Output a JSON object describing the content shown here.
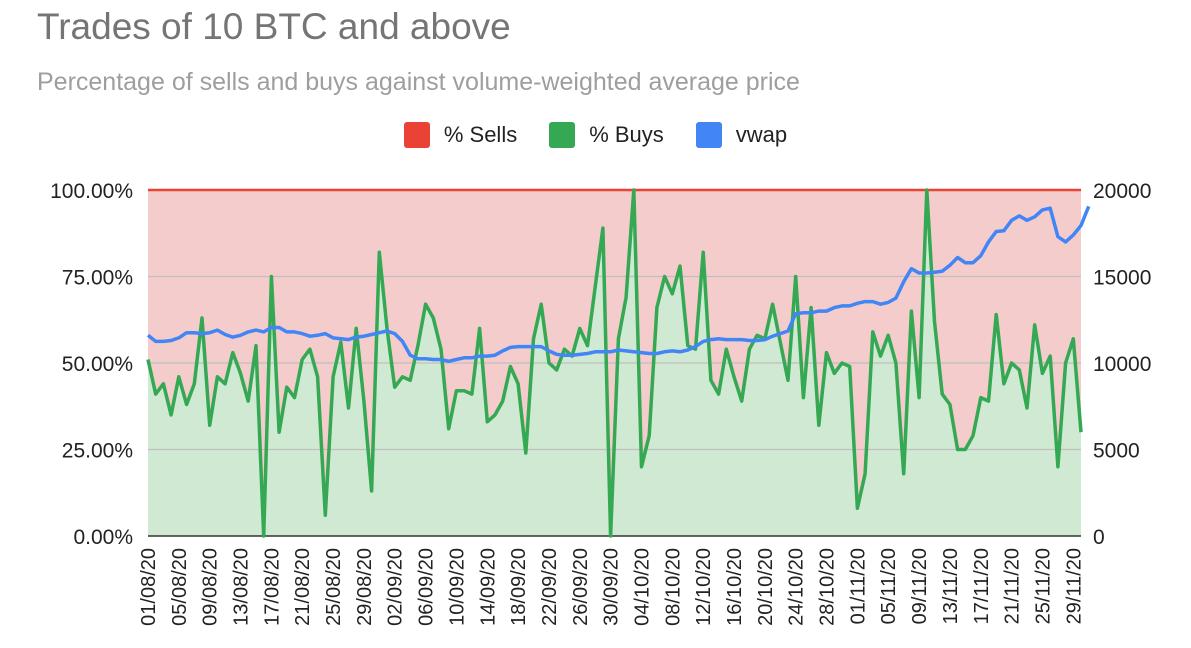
{
  "chart_data": {
    "type": "area",
    "title": "Trades of 10 BTC and above",
    "subtitle": "Percentage of sells and buys against volume-weighted average price",
    "legend": [
      {
        "name": "% Sells",
        "color": "#ea4335"
      },
      {
        "name": "% Buys",
        "color": "#34a853"
      },
      {
        "name": "vwap",
        "color": "#4285f4"
      }
    ],
    "legend_position": "top",
    "y_left": {
      "min": 0,
      "max": 1,
      "ticks": [
        "0.00%",
        "25.00%",
        "50.00%",
        "75.00%",
        "100.00%"
      ]
    },
    "y_right": {
      "min": 0,
      "max": 20000,
      "ticks": [
        "0",
        "5000",
        "10000",
        "15000",
        "20000"
      ]
    },
    "grid": true,
    "x_ticks": [
      "01/08/20",
      "05/08/20",
      "09/08/20",
      "13/08/20",
      "17/08/20",
      "21/08/20",
      "25/08/20",
      "29/08/20",
      "02/09/20",
      "06/09/20",
      "10/09/20",
      "14/09/20",
      "18/09/20",
      "22/09/20",
      "26/09/20",
      "30/09/20",
      "04/10/20",
      "08/10/20",
      "12/10/20",
      "16/10/20",
      "20/10/20",
      "24/10/20",
      "28/10/20",
      "01/11/20",
      "05/11/20",
      "09/11/20",
      "13/11/20",
      "17/11/20",
      "21/11/20",
      "25/11/20",
      "29/11/20"
    ],
    "x_start": "01/08/20",
    "x_end": "30/11/20",
    "series": [
      {
        "name": "% Sells",
        "color": "#ea4335",
        "fill": "#f4cccc",
        "note": "complement of % Buys (stacked to 100%)"
      },
      {
        "name": "% Buys",
        "color": "#34a853",
        "fill": "#d0e9d3",
        "values": [
          0.51,
          0.41,
          0.44,
          0.35,
          0.46,
          0.38,
          0.44,
          0.63,
          0.32,
          0.46,
          0.44,
          0.53,
          0.47,
          0.39,
          0.55,
          0.0,
          0.75,
          0.3,
          0.43,
          0.4,
          0.51,
          0.54,
          0.46,
          0.06,
          0.46,
          0.56,
          0.37,
          0.6,
          0.39,
          0.13,
          0.82,
          0.6,
          0.43,
          0.46,
          0.45,
          0.55,
          0.67,
          0.63,
          0.54,
          0.31,
          0.42,
          0.42,
          0.41,
          0.6,
          0.33,
          0.35,
          0.39,
          0.49,
          0.44,
          0.24,
          0.57,
          0.67,
          0.5,
          0.48,
          0.54,
          0.52,
          0.6,
          0.55,
          0.72,
          0.89,
          0.0,
          0.57,
          0.69,
          1.0,
          0.2,
          0.29,
          0.66,
          0.75,
          0.7,
          0.78,
          0.55,
          0.54,
          0.82,
          0.45,
          0.41,
          0.54,
          0.46,
          0.39,
          0.54,
          0.58,
          0.57,
          0.67,
          0.56,
          0.45,
          0.75,
          0.4,
          0.66,
          0.32,
          0.53,
          0.47,
          0.5,
          0.49,
          0.08,
          0.18,
          0.59,
          0.52,
          0.58,
          0.5,
          0.18,
          0.65,
          0.4,
          1.0,
          0.62,
          0.41,
          0.38,
          0.25,
          0.25,
          0.29,
          0.4,
          0.39,
          0.64,
          0.44,
          0.5,
          0.48,
          0.37,
          0.61,
          0.47,
          0.52,
          0.2,
          0.5,
          0.57,
          0.3
        ]
      },
      {
        "name": "vwap",
        "color": "#4285f4",
        "values": [
          11600,
          11250,
          11250,
          11300,
          11450,
          11750,
          11750,
          11700,
          11750,
          11900,
          11650,
          11500,
          11600,
          11800,
          11900,
          11800,
          12050,
          12050,
          11800,
          11800,
          11700,
          11550,
          11600,
          11700,
          11450,
          11400,
          11350,
          11500,
          11550,
          11650,
          11750,
          11850,
          11700,
          11250,
          10450,
          10250,
          10250,
          10200,
          10200,
          10100,
          10200,
          10300,
          10300,
          10400,
          10400,
          10450,
          10700,
          10900,
          10950,
          10950,
          10950,
          10950,
          10700,
          10500,
          10450,
          10450,
          10500,
          10550,
          10650,
          10650,
          10650,
          10750,
          10700,
          10650,
          10600,
          10550,
          10550,
          10650,
          10700,
          10650,
          10750,
          10950,
          11250,
          11350,
          11400,
          11350,
          11350,
          11350,
          11300,
          11300,
          11350,
          11550,
          11700,
          11850,
          12850,
          12900,
          12900,
          13000,
          13000,
          13200,
          13300,
          13300,
          13450,
          13550,
          13550,
          13400,
          13500,
          13750,
          14700,
          15450,
          15200,
          15200,
          15250,
          15300,
          15650,
          16100,
          15800,
          15800,
          16200,
          17000,
          17600,
          17650,
          18250,
          18500,
          18250,
          18450,
          18850,
          18950,
          17300,
          17000,
          17400,
          17950,
          19050
        ]
      }
    ]
  }
}
